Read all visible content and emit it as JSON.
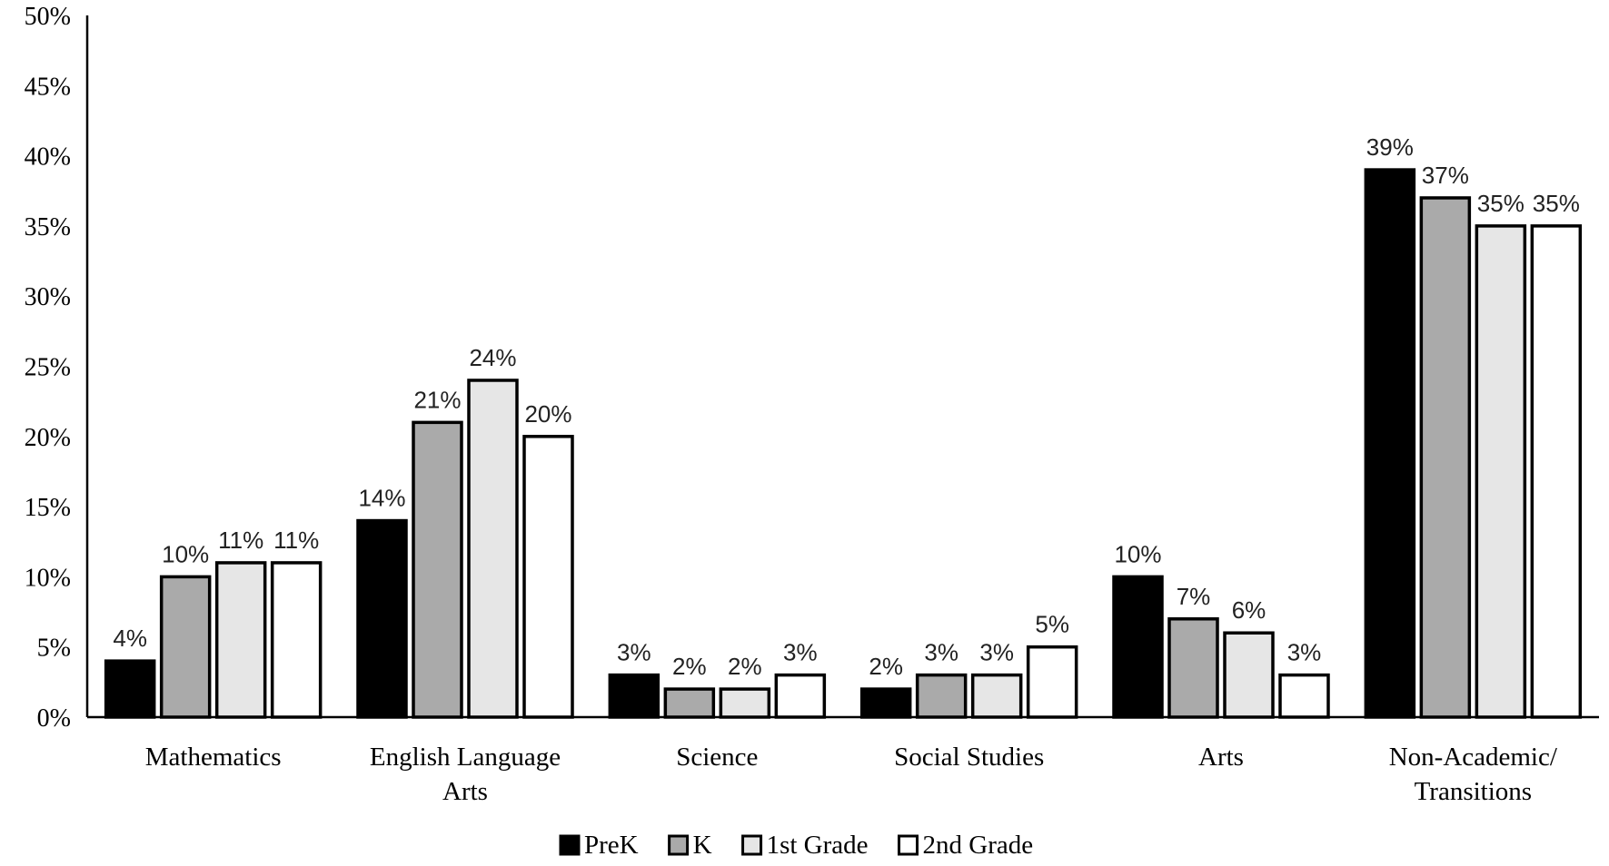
{
  "chart_data": {
    "type": "bar",
    "title": "",
    "xlabel": "",
    "ylabel": "",
    "ylim": [
      0,
      50
    ],
    "ytick_step": 5,
    "ytick_format": "%",
    "grid": false,
    "legend_position": "bottom-center",
    "categories": [
      [
        "Mathematics"
      ],
      [
        "English Language",
        "Arts"
      ],
      [
        "Science"
      ],
      [
        "Social Studies"
      ],
      [
        "Arts"
      ],
      [
        "Non-Academic/",
        "Transitions"
      ]
    ],
    "series": [
      {
        "name": "PreK",
        "color": "#000000",
        "values": [
          4,
          14,
          3,
          2,
          10,
          39
        ]
      },
      {
        "name": "K",
        "color": "#aaaaaa",
        "values": [
          10,
          21,
          2,
          3,
          7,
          37
        ]
      },
      {
        "name": "1st Grade",
        "color": "#e6e6e6",
        "values": [
          11,
          24,
          2,
          3,
          6,
          35
        ]
      },
      {
        "name": "2nd Grade",
        "color": "#ffffff",
        "values": [
          11,
          20,
          3,
          5,
          3,
          35
        ]
      }
    ]
  }
}
